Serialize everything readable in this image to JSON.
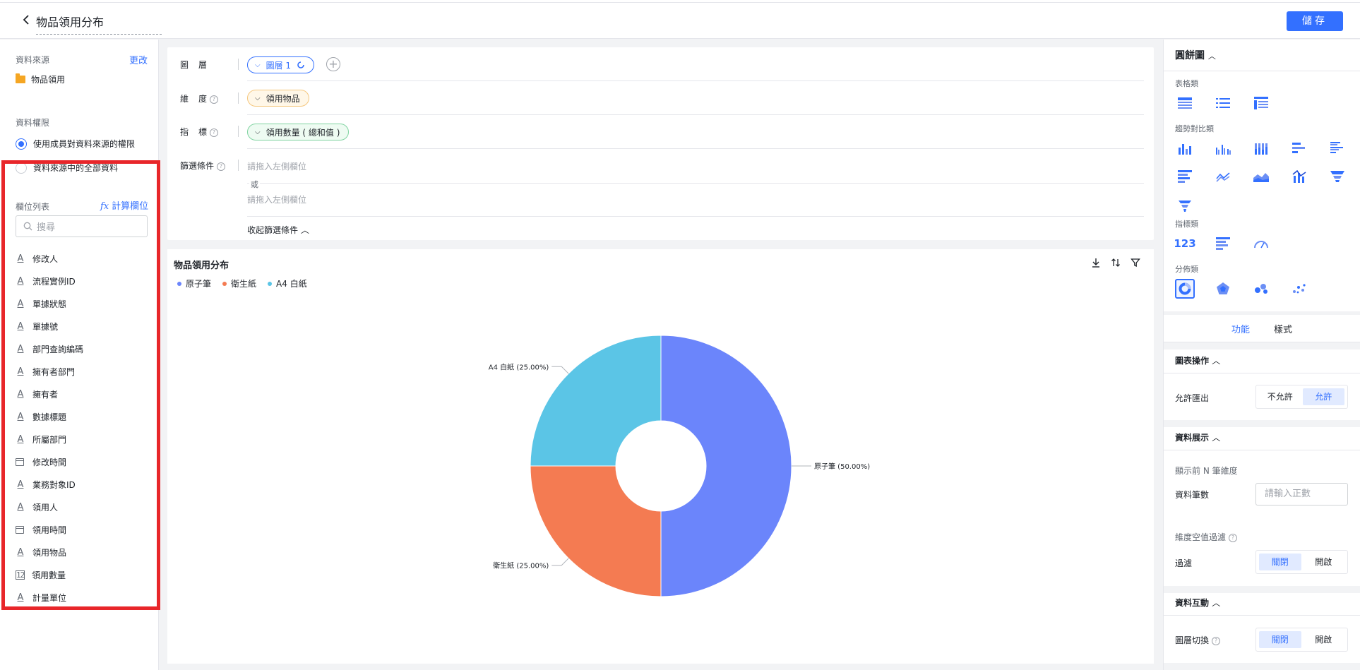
{
  "header": {
    "title": "物品領用分布",
    "save_label": "儲存"
  },
  "left": {
    "data_source_label": "資料來源",
    "change_label": "更改",
    "data_source_name": "物品領用",
    "permission_label": "資料權限",
    "permission_options": [
      "使用成員對資料來源的權限",
      "資料來源中的全部資料"
    ],
    "field_list_title": "欄位列表",
    "calc_field_label": "計算欄位",
    "calc_field_icon_text": "fx",
    "search_placeholder": "搜尋",
    "fields": [
      {
        "type": "text",
        "label": "修改人"
      },
      {
        "type": "text",
        "label": "流程實例ID"
      },
      {
        "type": "text",
        "label": "單據狀態"
      },
      {
        "type": "text",
        "label": "單據號"
      },
      {
        "type": "text",
        "label": "部門查詢編碼"
      },
      {
        "type": "text",
        "label": "擁有者部門"
      },
      {
        "type": "text",
        "label": "擁有者"
      },
      {
        "type": "text",
        "label": "數據標題"
      },
      {
        "type": "text",
        "label": "所屬部門"
      },
      {
        "type": "date",
        "label": "修改時間"
      },
      {
        "type": "text",
        "label": "業務對象ID"
      },
      {
        "type": "text",
        "label": "領用人"
      },
      {
        "type": "date",
        "label": "領用時間"
      },
      {
        "type": "text",
        "label": "領用物品"
      },
      {
        "type": "number",
        "label": "領用數量"
      },
      {
        "type": "text",
        "label": "計量單位"
      }
    ]
  },
  "config": {
    "layer_label": "圖層",
    "dimension_label": "維度",
    "metric_label": "指標",
    "filter_label": "篩選條件",
    "layer_pill": "圖層 1",
    "dimension_pill": "領用物品",
    "metric_pill": "領用數量 ( 總和值 )",
    "filter_placeholder_1": "請拖入左側欄位",
    "or_text": "或",
    "filter_placeholder_2": "請拖入左側欄位",
    "collapse_label": "收起篩選條件"
  },
  "chart": {
    "title": "物品領用分布",
    "legend": [
      "原子筆",
      "衛生紙",
      "A4 白紙"
    ]
  },
  "chart_data": {
    "type": "pie",
    "donut": true,
    "title": "物品領用分布",
    "categories": [
      "原子筆",
      "衛生紙",
      "A4 白紙"
    ],
    "values": [
      50.0,
      25.0,
      25.0
    ],
    "labels": [
      "原子筆 (50.00%)",
      "衛生紙 (25.00%)",
      "A4 白紙 (25.00%)"
    ],
    "colors": [
      "#6b85fb",
      "#f47b52",
      "#5bc5e6"
    ],
    "legend_position": "top-left"
  },
  "right": {
    "chart_type_title": "圓餅圖",
    "group_table": "表格類",
    "group_trend": "趨勢對比類",
    "group_indicator": "指標類",
    "group_distribution": "分佈類",
    "indicator_123": "123",
    "tab_function": "功能",
    "tab_style": "樣式",
    "chart_ops_title": "圖表操作",
    "allow_export_label": "允許匯出",
    "allow_export_options": [
      "不允許",
      "允許"
    ],
    "data_display_title": "資料展示",
    "top_n_label": "顯示前 N 筆維度",
    "data_count_label": "資料筆數",
    "data_count_placeholder": "請輸入正數",
    "dim_null_filter_label": "維度空值過濾",
    "filter_label": "過濾",
    "filter_options": [
      "關閉",
      "開啟"
    ],
    "data_interaction_title": "資料互動",
    "layer_switch_label": "圖層切換",
    "layer_switch_options": [
      "關閉",
      "開啟"
    ]
  }
}
